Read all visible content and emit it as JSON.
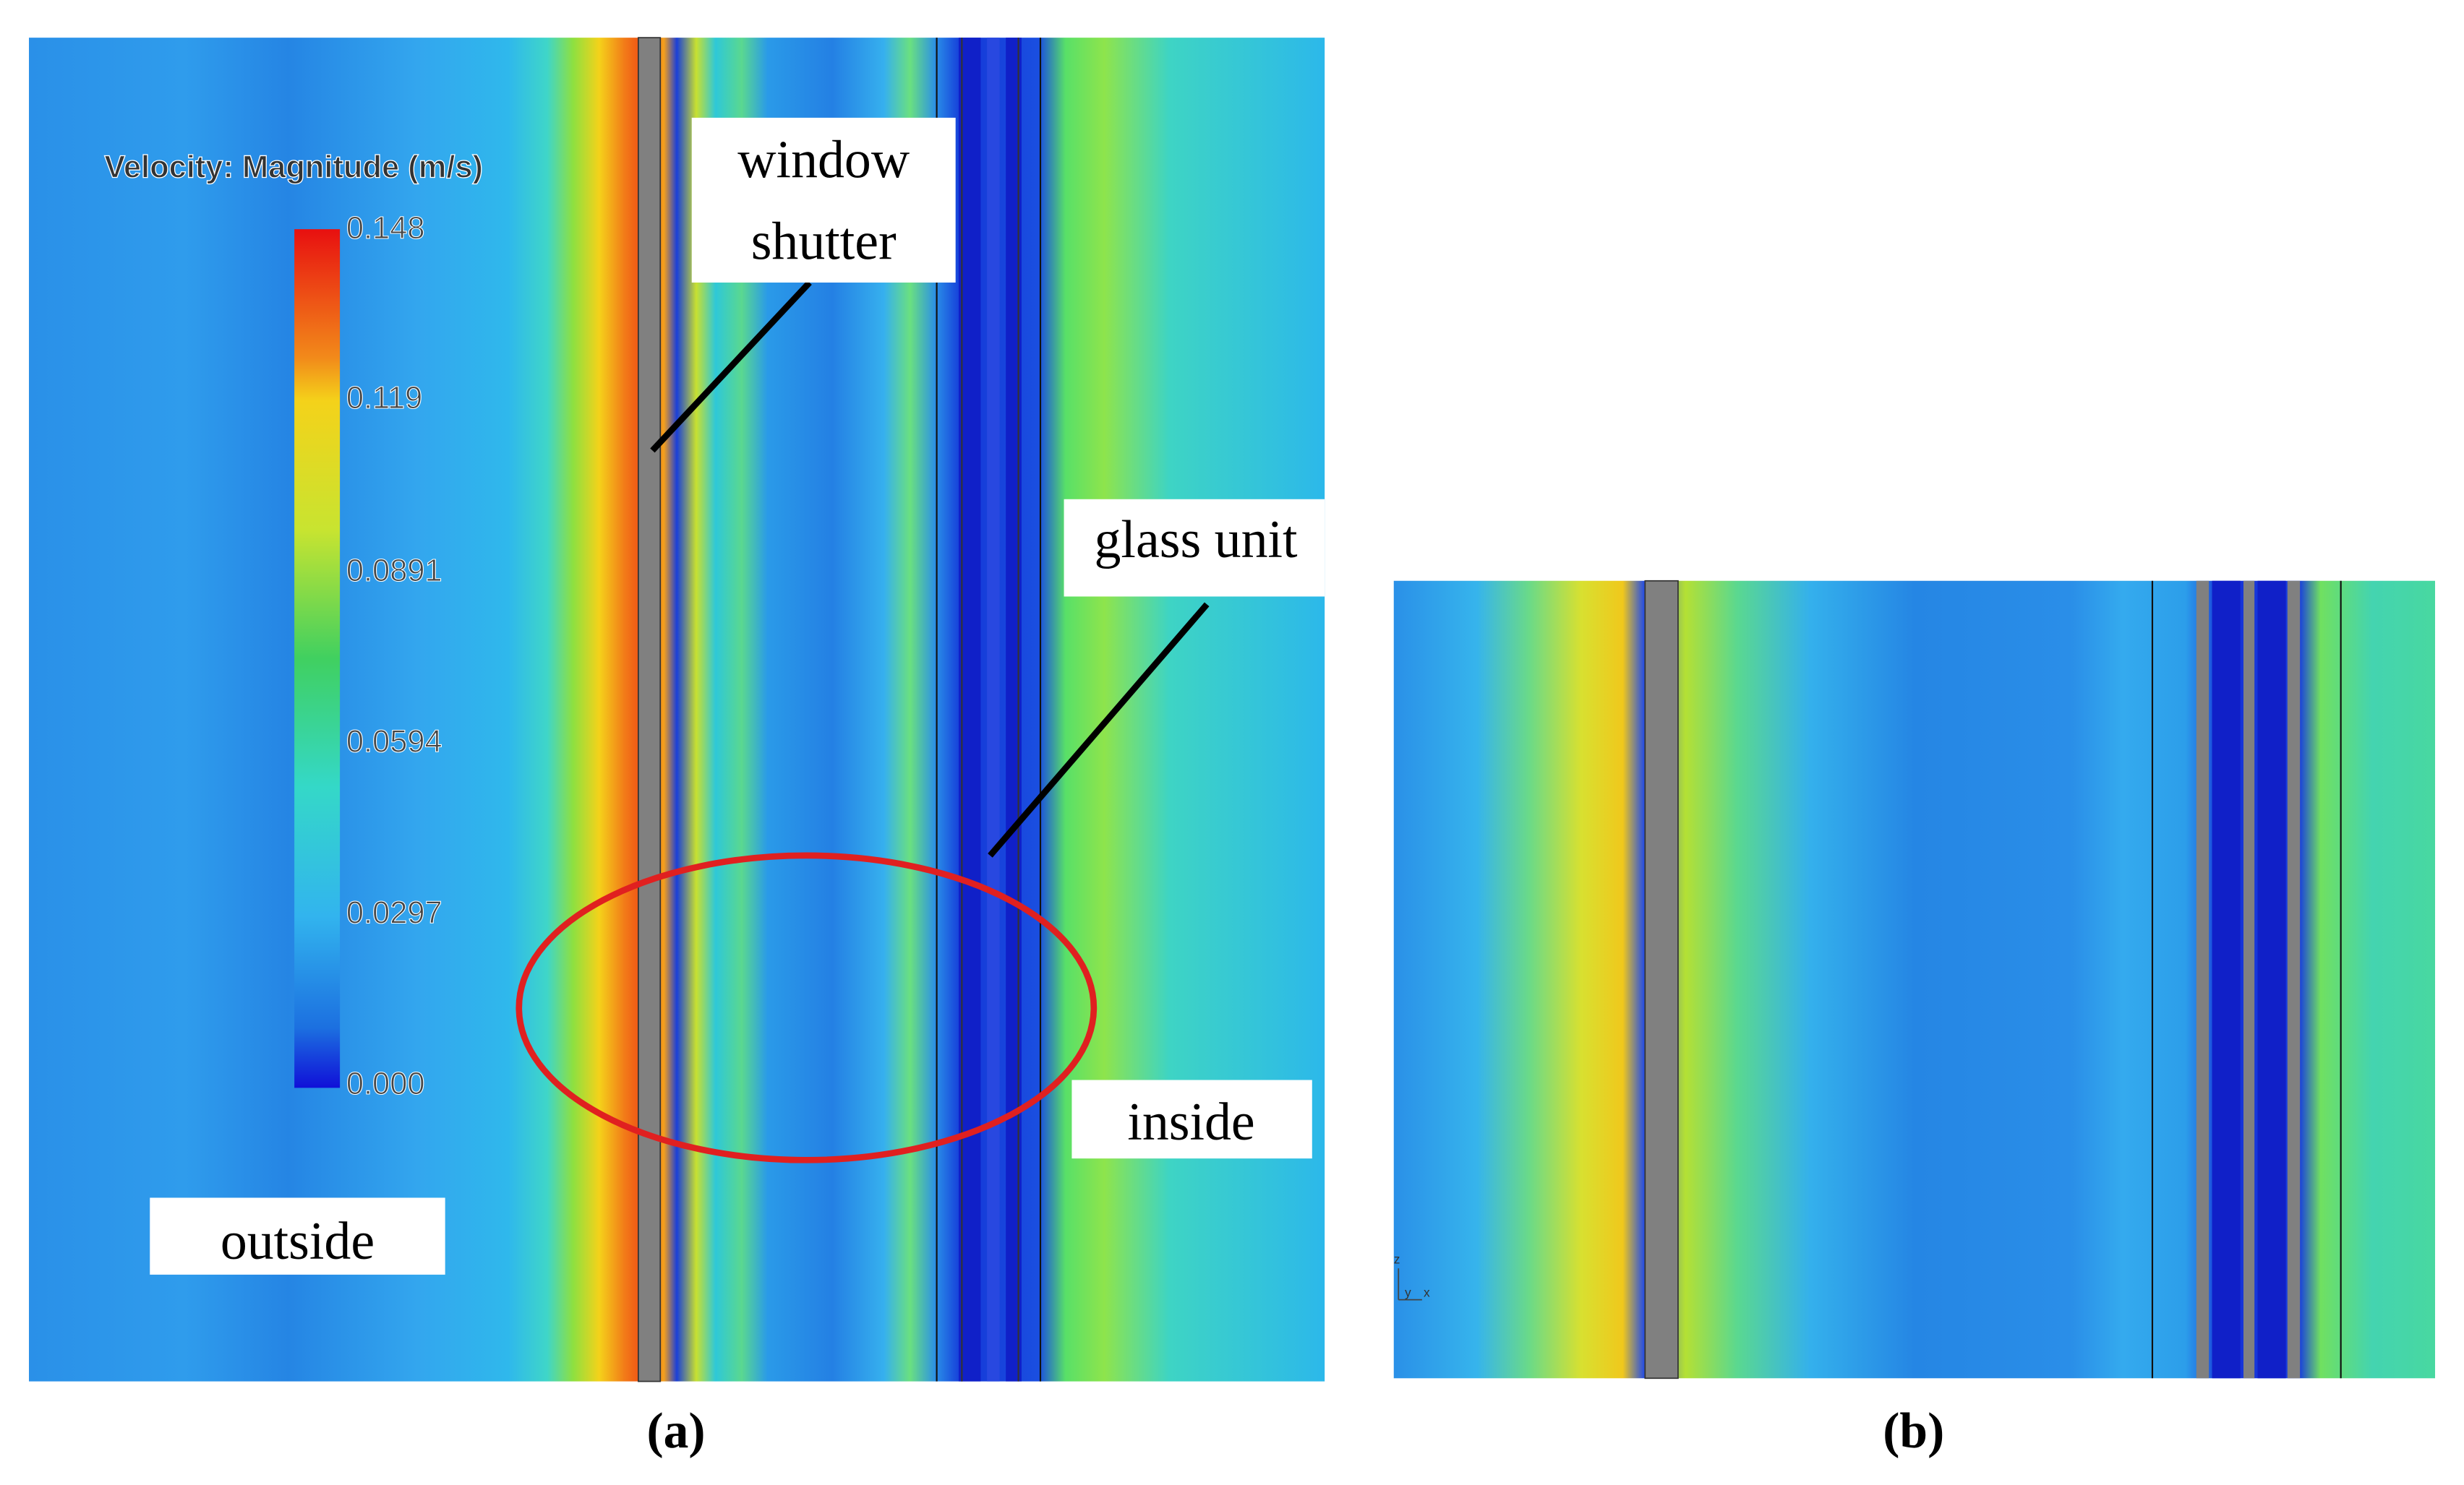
{
  "panel_a": {
    "legend": {
      "title": "Velocity: Magnitude (m/s)",
      "ticks": [
        "0.148",
        "0.119",
        "0.0891",
        "0.0594",
        "0.0297",
        "0.000"
      ]
    },
    "labels": {
      "shutter_line1": "window",
      "shutter_line2": "shutter",
      "glass": "glass unit",
      "inside": "inside",
      "outside": "outside"
    },
    "caption": "(a)"
  },
  "panel_b": {
    "axes": [
      "z",
      "y",
      "x"
    ],
    "caption": "(b)"
  }
}
